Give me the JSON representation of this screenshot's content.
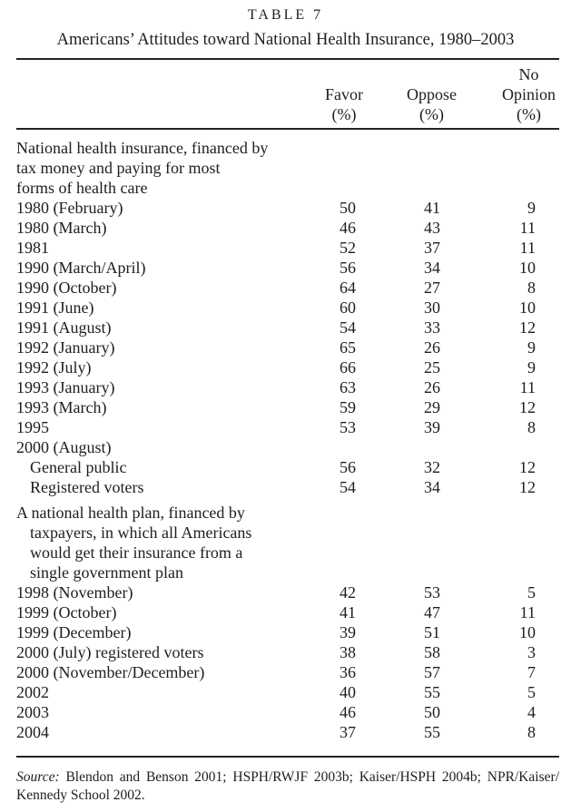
{
  "page": {
    "title": "TABLE 7",
    "subtitle": "Americans’ Attitudes toward National Health Insurance, 1980–2003"
  },
  "table": {
    "columns": [
      {
        "lines": [
          "Favor",
          "(%)"
        ]
      },
      {
        "lines": [
          "Oppose",
          "(%)"
        ]
      },
      {
        "lines": [
          "No",
          "Opinion",
          "(%)"
        ]
      }
    ],
    "rows": [
      {
        "label": "National health insurance, financed by"
      },
      {
        "label": "tax money and paying for most"
      },
      {
        "label": "forms of health care"
      },
      {
        "label": "1980 (February)",
        "favor": "50",
        "oppose": "41",
        "no_opinion": "9"
      },
      {
        "label": "1980 (March)",
        "favor": "46",
        "oppose": "43",
        "no_opinion": "11"
      },
      {
        "label": "1981",
        "favor": "52",
        "oppose": "37",
        "no_opinion": "11"
      },
      {
        "label": "1990 (March/April)",
        "favor": "56",
        "oppose": "34",
        "no_opinion": "10"
      },
      {
        "label": "1990 (October)",
        "favor": "64",
        "oppose": "27",
        "no_opinion": "8"
      },
      {
        "label": "1991 (June)",
        "favor": "60",
        "oppose": "30",
        "no_opinion": "10"
      },
      {
        "label": "1991 (August)",
        "favor": "54",
        "oppose": "33",
        "no_opinion": "12"
      },
      {
        "label": "1992 (January)",
        "favor": "65",
        "oppose": "26",
        "no_opinion": "9"
      },
      {
        "label": "1992 (July)",
        "favor": "66",
        "oppose": "25",
        "no_opinion": "9"
      },
      {
        "label": "1993 (January)",
        "favor": "63",
        "oppose": "26",
        "no_opinion": "11"
      },
      {
        "label": "1993 (March)",
        "favor": "59",
        "oppose": "29",
        "no_opinion": "12"
      },
      {
        "label": "1995",
        "favor": "53",
        "oppose": "39",
        "no_opinion": "8"
      },
      {
        "label": "2000 (August)"
      },
      {
        "label": "General public",
        "indent": true,
        "favor": "56",
        "oppose": "32",
        "no_opinion": "12"
      },
      {
        "label": "Registered voters",
        "indent": true,
        "favor": "54",
        "oppose": "34",
        "no_opinion": "12"
      },
      {
        "label": "A national health plan, financed by",
        "gap_above": true
      },
      {
        "label": "taxpayers, in which all Americans",
        "indent": true
      },
      {
        "label": "would get their insurance from a",
        "indent": true
      },
      {
        "label": "single government plan",
        "indent": true
      },
      {
        "label": "1998 (November)",
        "favor": "42",
        "oppose": "53",
        "no_opinion": "5"
      },
      {
        "label": "1999 (October)",
        "favor": "41",
        "oppose": "47",
        "no_opinion": "11"
      },
      {
        "label": "1999 (December)",
        "favor": "39",
        "oppose": "51",
        "no_opinion": "10"
      },
      {
        "label": "2000 (July) registered voters",
        "favor": "38",
        "oppose": "58",
        "no_opinion": "3"
      },
      {
        "label": "2000 (November/December)",
        "favor": "36",
        "oppose": "57",
        "no_opinion": "7"
      },
      {
        "label": "2002",
        "favor": "40",
        "oppose": "55",
        "no_opinion": "5"
      },
      {
        "label": "2003",
        "favor": "46",
        "oppose": "50",
        "no_opinion": "4"
      },
      {
        "label": "2004",
        "favor": "37",
        "oppose": "55",
        "no_opinion": "8"
      }
    ]
  },
  "source": {
    "label": "Source:",
    "line1_rest": "Blendon and Benson 2001; HSPH/RWJF 2003b; Kaiser/HSPH 2004b; NPR/Kaiser/",
    "line2": "Kennedy School 2002."
  },
  "colors": {
    "background": "#ffffff",
    "text": "#1e1e1e",
    "rule": "#222222"
  }
}
